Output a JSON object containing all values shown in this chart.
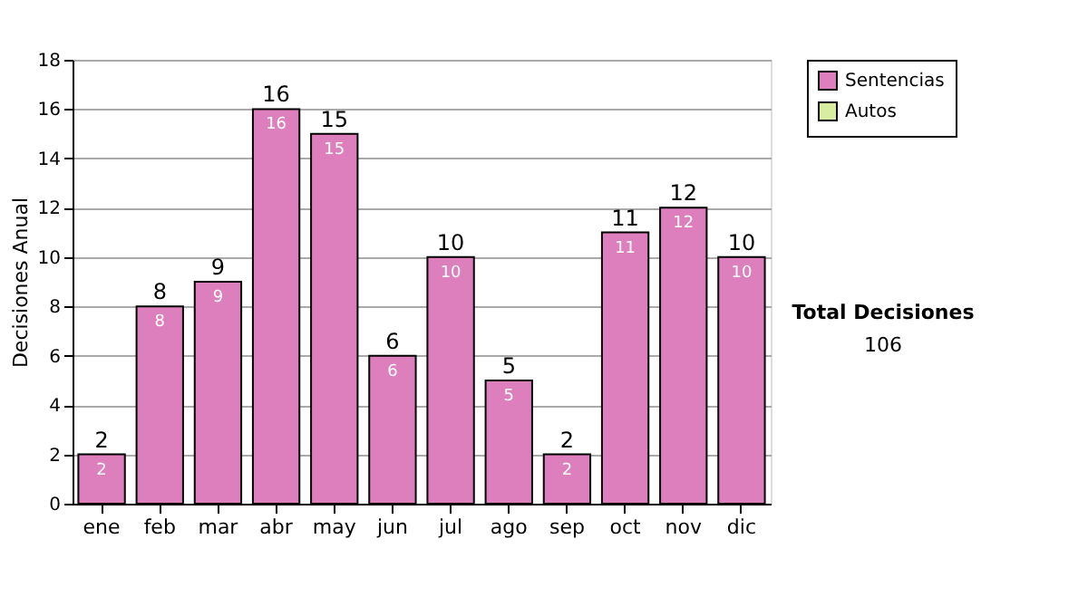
{
  "chart_data": {
    "type": "bar",
    "stacked": true,
    "ylabel": "Decisiones Anual",
    "categories": [
      "ene",
      "feb",
      "mar",
      "abr",
      "may",
      "jun",
      "jul",
      "ago",
      "sep",
      "oct",
      "nov",
      "dic"
    ],
    "series": [
      {
        "name": "Sentencias",
        "color": "#dd7fbd",
        "values": [
          2,
          8,
          9,
          16,
          15,
          6,
          10,
          5,
          2,
          11,
          12,
          10
        ]
      },
      {
        "name": "Autos",
        "color": "#d9eda0",
        "values": [
          null,
          null,
          null,
          null,
          null,
          null,
          null,
          null,
          null,
          null,
          null,
          null
        ]
      }
    ],
    "data_labels": true,
    "totals": [
      "2",
      "8",
      "9",
      "16",
      "15",
      "6",
      "10",
      "5",
      "2",
      "11",
      "12",
      "10"
    ],
    "ylim": [
      0,
      18
    ],
    "yticks": [
      0,
      2,
      4,
      6,
      8,
      10,
      12,
      14,
      16,
      18
    ],
    "grid": "y",
    "legend": "right",
    "annotations": [
      "Total Decisiones",
      "106"
    ]
  }
}
